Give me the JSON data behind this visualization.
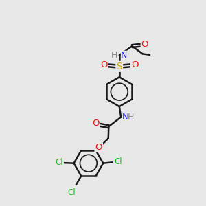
{
  "bg_color": "#e8e8e8",
  "bond_color": "#1a1a1a",
  "bond_width": 1.8,
  "colors": {
    "N": "#1a1aff",
    "O": "#ee1111",
    "S": "#ccaa00",
    "Cl": "#22bb22",
    "C": "#1a1a1a",
    "H": "#888888"
  },
  "figsize": [
    3.0,
    3.0
  ],
  "dpi": 100,
  "xlim": [
    0,
    10
  ],
  "ylim": [
    0,
    10
  ]
}
